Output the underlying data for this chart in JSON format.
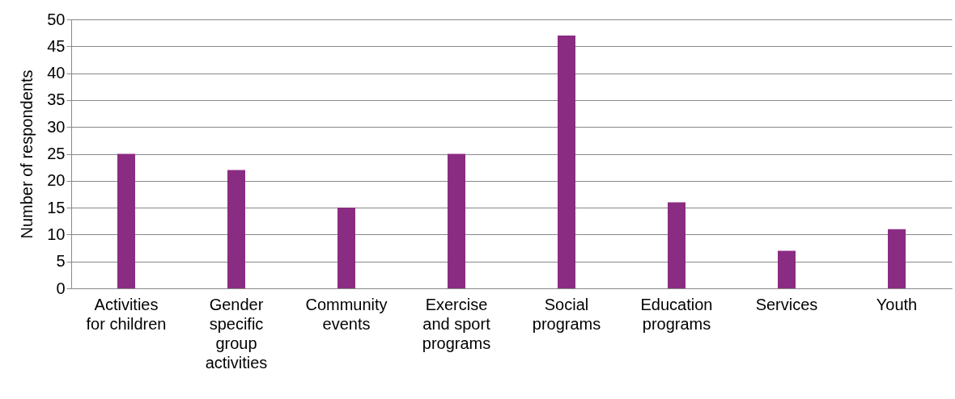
{
  "chart_data": {
    "type": "bar",
    "ylabel": "Number of respondents",
    "categories": [
      "Activities for children",
      "Gender specific group activities",
      "Community events",
      "Exercise and sport programs",
      "Social programs",
      "Education programs",
      "Services",
      "Youth"
    ],
    "values": [
      25,
      22,
      15,
      25,
      47,
      16,
      7,
      11
    ],
    "color": "#8b2c83",
    "ylim": [
      0,
      50
    ],
    "yticks": [
      0,
      5,
      10,
      15,
      20,
      25,
      30,
      35,
      40,
      45,
      50
    ],
    "grid": "y"
  }
}
